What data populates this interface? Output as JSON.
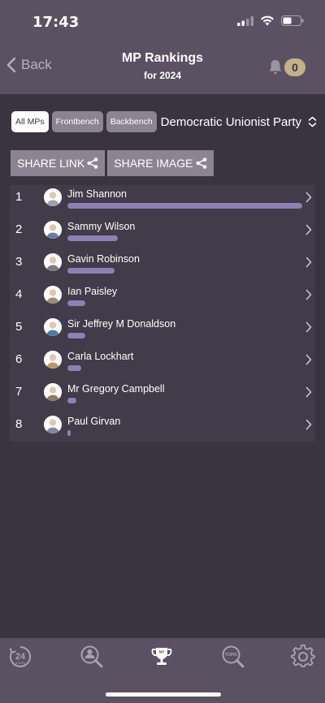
{
  "status": {
    "time": "17:43"
  },
  "header": {
    "back_label": "Back",
    "title": "MP Rankings",
    "subtitle": "for 2024",
    "notification_count": "0"
  },
  "filters": {
    "chips": [
      "All MPs",
      "Frontbench",
      "Backbench"
    ],
    "active": "All MPs",
    "party": "Democratic Unionist Party"
  },
  "share": {
    "link_label": "SHARE LINK",
    "image_label": "SHARE IMAGE"
  },
  "rankings": [
    {
      "rank": "1",
      "name": "Jim Shannon",
      "score_fraction": 1.0,
      "avatar_color": "#9aa3ad"
    },
    {
      "rank": "2",
      "name": "Sammy Wilson",
      "score_fraction": 0.215,
      "avatar_color": "#6a7f9e"
    },
    {
      "rank": "3",
      "name": "Gavin Robinson",
      "score_fraction": 0.2,
      "avatar_color": "#7b7b80"
    },
    {
      "rank": "4",
      "name": "Ian Paisley",
      "score_fraction": 0.075,
      "avatar_color": "#a08a7a"
    },
    {
      "rank": "5",
      "name": "Sir Jeffrey M Donaldson",
      "score_fraction": 0.075,
      "avatar_color": "#4d7ca8"
    },
    {
      "rank": "6",
      "name": "Carla Lockhart",
      "score_fraction": 0.058,
      "avatar_color": "#b89a6e"
    },
    {
      "rank": "7",
      "name": "Mr Gregory Campbell",
      "score_fraction": 0.038,
      "avatar_color": "#8d7a6a"
    },
    {
      "rank": "8",
      "name": "Paul Girvan",
      "score_fraction": 0.014,
      "avatar_color": "#7f8aa0"
    }
  ],
  "tabs": [
    {
      "id": "24hours",
      "label": "24",
      "sub": "HOURS"
    },
    {
      "id": "mp-search",
      "label": "MP"
    },
    {
      "id": "mp-rankings",
      "label": "MP"
    },
    {
      "id": "topic-search",
      "label": "TOPIC"
    },
    {
      "id": "settings"
    }
  ],
  "colors": {
    "bar": "#8d80b3",
    "background": "#3a3441",
    "header": "#5b5163",
    "badge": "#c3b18b"
  }
}
